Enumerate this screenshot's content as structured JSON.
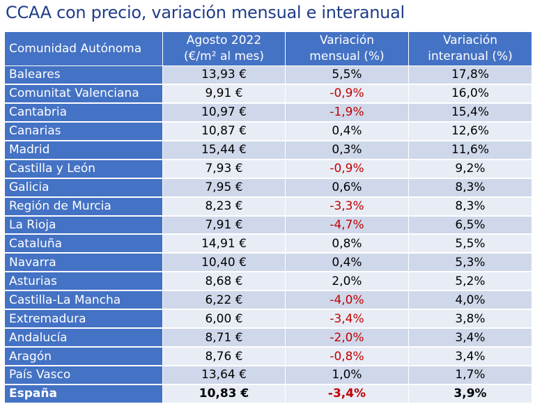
{
  "title": "CCAA con precio, variación mensual e interanual",
  "headers": {
    "col0": "Comunidad Autónoma",
    "col1_line1": "Agosto 2022",
    "col1_line2": "(€/m² al mes)",
    "col2_line1": "Variación",
    "col2_line2": "mensual (%)",
    "col3_line1": "Variación",
    "col3_line2": "interanual (%)"
  },
  "rows": [
    {
      "name": "Baleares",
      "price": "13,93 €",
      "monthly": "5,5%",
      "annual": "17,8%"
    },
    {
      "name": "Comunitat Valenciana",
      "price": "9,91 €",
      "monthly": "-0,9%",
      "annual": "16,0%"
    },
    {
      "name": "Cantabria",
      "price": "10,97 €",
      "monthly": "-1,9%",
      "annual": "15,4%"
    },
    {
      "name": "Canarias",
      "price": "10,87 €",
      "monthly": "0,4%",
      "annual": "12,6%"
    },
    {
      "name": "Madrid",
      "price": "15,44 €",
      "monthly": "0,3%",
      "annual": "11,6%"
    },
    {
      "name": "Castilla y León",
      "price": "7,93 €",
      "monthly": "-0,9%",
      "annual": "9,2%"
    },
    {
      "name": "Galicia",
      "price": "7,95 €",
      "monthly": "0,6%",
      "annual": "8,3%"
    },
    {
      "name": "Región de Murcia",
      "price": "8,23 €",
      "monthly": "-3,3%",
      "annual": "8,3%"
    },
    {
      "name": "La Rioja",
      "price": "7,91 €",
      "monthly": "-4,7%",
      "annual": "6,5%"
    },
    {
      "name": "Cataluña",
      "price": "14,91 €",
      "monthly": "0,8%",
      "annual": "5,5%"
    },
    {
      "name": "Navarra",
      "price": "10,40 €",
      "monthly": "0,4%",
      "annual": "5,3%"
    },
    {
      "name": "Asturias",
      "price": "8,68 €",
      "monthly": "2,0%",
      "annual": "5,2%"
    },
    {
      "name": "Castilla-La Mancha",
      "price": "6,22 €",
      "monthly": "-4,0%",
      "annual": "4,0%"
    },
    {
      "name": "Extremadura",
      "price": "6,00 €",
      "monthly": "-3,4%",
      "annual": "3,8%"
    },
    {
      "name": "Andalucía",
      "price": "8,71 €",
      "monthly": "-2,0%",
      "annual": "3,4%"
    },
    {
      "name": "Aragón",
      "price": "8,76 €",
      "monthly": "-0,8%",
      "annual": "3,4%"
    },
    {
      "name": "País Vasco",
      "price": "13,64 €",
      "monthly": "1,0%",
      "annual": "1,7%"
    }
  ],
  "total": {
    "name": "España",
    "price": "10,83 €",
    "monthly": "-3,4%",
    "annual": "3,9%"
  },
  "colors": {
    "header_bg": "#4472c4",
    "row_band_dark": "#cfd8ea",
    "row_band_light": "#e8ecf5",
    "negative_text": "#c00000",
    "title_text": "#1f3c88"
  }
}
